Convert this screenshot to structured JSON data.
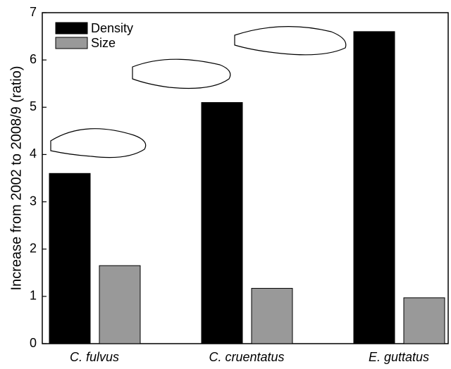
{
  "chart_data": {
    "type": "bar",
    "y_label": "Increase from 2002 to 2008/9 (ratio)",
    "categories": [
      "C. fulvus",
      "C. cruentatus",
      "E. guttatus"
    ],
    "series": [
      {
        "name": "Density",
        "color": "#000000",
        "values": [
          3.6,
          5.1,
          6.6
        ]
      },
      {
        "name": "Size",
        "color": "#999999",
        "values": [
          1.65,
          1.17,
          0.97
        ]
      }
    ],
    "ylim": [
      0,
      7
    ],
    "yticks": [
      0,
      1,
      2,
      3,
      4,
      5,
      6,
      7
    ],
    "legend": "top-left"
  }
}
